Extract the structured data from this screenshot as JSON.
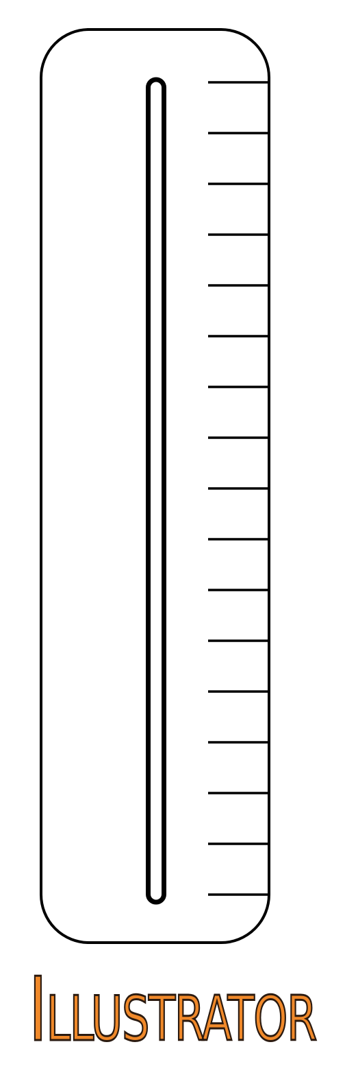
{
  "caption": {
    "text": "Illustrator"
  },
  "thermometer": {
    "tick_count": 17
  },
  "colors": {
    "outline": "#000000",
    "background": "#ffffff",
    "caption_fill": "#f0892a",
    "caption_stroke": "#2a1a10"
  }
}
